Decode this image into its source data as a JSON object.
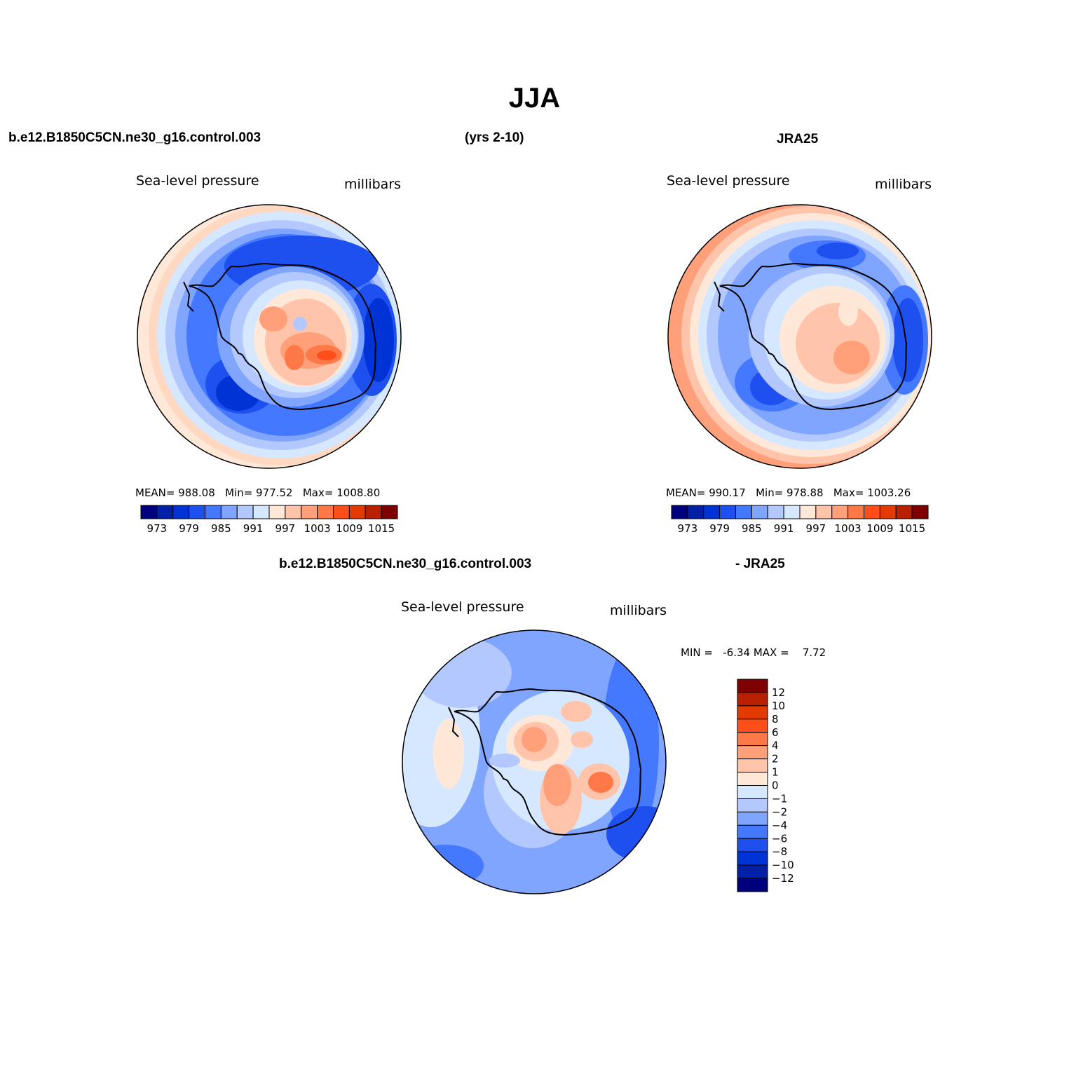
{
  "title": "JJA",
  "header": {
    "case_name": "b.e12.B1850C5CN.ne30_g16.control.003",
    "years": "(yrs 2-10)",
    "obs_name": "JRA25",
    "diff_case": "b.e12.B1850C5CN.ne30_g16.control.003",
    "diff_obs": "- JRA25"
  },
  "colors": {
    "abs_scale": [
      "#00007f",
      "#0020a8",
      "#0033d6",
      "#1e50f0",
      "#4478ff",
      "#7fa5ff",
      "#b2c8ff",
      "#d6e8ff",
      "#ffe8d8",
      "#ffc4aa",
      "#ffa07a",
      "#ff7848",
      "#ff4e1a",
      "#e23a00",
      "#b82000",
      "#7f0000"
    ],
    "diff_scale": [
      "#00007f",
      "#0020a8",
      "#0033d6",
      "#1e50f0",
      "#4478ff",
      "#7fa5ff",
      "#b2c8ff",
      "#d6e8ff",
      "#ffe8d8",
      "#ffc4aa",
      "#ffa07a",
      "#ff7848",
      "#ff4e1a",
      "#e23a00",
      "#b82000",
      "#7f0000"
    ]
  },
  "chart_data": [
    {
      "type": "heatmap",
      "projection": "south-polar-stereographic",
      "variable": "Sea-level pressure",
      "units": "millibars",
      "stats": {
        "mean_label": "MEAN=",
        "mean": "988.08",
        "min_label": "Min=",
        "min": "977.52",
        "max_label": "Max=",
        "max": "1008.80"
      },
      "levels": [
        973,
        976,
        979,
        982,
        985,
        988,
        991,
        994,
        997,
        1000,
        1003,
        1006,
        1009,
        1012,
        1015
      ],
      "tick_labels": [
        "973",
        "979",
        "985",
        "991",
        "997",
        "1003",
        "1009",
        "1015"
      ]
    },
    {
      "type": "heatmap",
      "projection": "south-polar-stereographic",
      "variable": "Sea-level pressure",
      "units": "millibars",
      "stats": {
        "mean_label": "MEAN=",
        "mean": "990.17",
        "min_label": "Min=",
        "min": "978.88",
        "max_label": "Max=",
        "max": "1003.26"
      },
      "levels": [
        973,
        976,
        979,
        982,
        985,
        988,
        991,
        994,
        997,
        1000,
        1003,
        1006,
        1009,
        1012,
        1015
      ],
      "tick_labels": [
        "973",
        "979",
        "985",
        "991",
        "997",
        "1003",
        "1009",
        "1015"
      ]
    },
    {
      "type": "heatmap",
      "projection": "south-polar-stereographic",
      "variable": "Sea-level pressure",
      "units": "millibars",
      "stats": {
        "min_label": "MIN =",
        "min": "-6.34",
        "max_label": "MAX =",
        "max": "7.72"
      },
      "levels": [
        -12,
        -10,
        -8,
        -6,
        -4,
        -2,
        -1,
        0,
        1,
        2,
        4,
        6,
        8,
        10,
        12
      ],
      "tick_labels": [
        "12",
        "10",
        "8",
        "6",
        "4",
        "2",
        "1",
        "0",
        "−1",
        "−2",
        "−4",
        "−6",
        "−8",
        "−10",
        "−12"
      ]
    }
  ]
}
